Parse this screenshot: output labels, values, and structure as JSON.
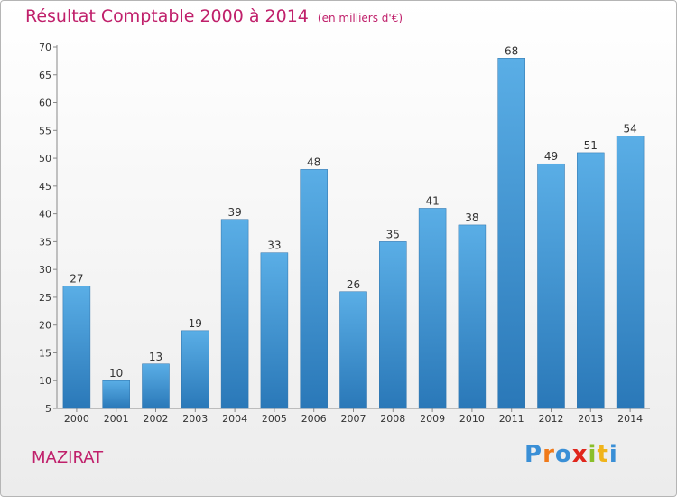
{
  "header": {
    "title": "Résultat Comptable 2000 à 2014",
    "subtitle": "(en milliers d'€)"
  },
  "footer": {
    "town": "MAZIRAT",
    "logo_text": "Proxiti"
  },
  "colors": {
    "bar_top": "#5aaee6",
    "bar_bottom": "#2a78b8",
    "title": "#c0206b",
    "grid": "#cccccc"
  },
  "chart_data": {
    "type": "bar",
    "title": "Résultat Comptable 2000 à 2014",
    "subtitle": "(en milliers d'€)",
    "xlabel": "",
    "ylabel": "",
    "categories": [
      "2000",
      "2001",
      "2002",
      "2003",
      "2004",
      "2005",
      "2006",
      "2007",
      "2008",
      "2009",
      "2010",
      "2011",
      "2012",
      "2013",
      "2014"
    ],
    "values": [
      27,
      10,
      13,
      19,
      39,
      33,
      48,
      26,
      35,
      41,
      38,
      68,
      49,
      51,
      54
    ],
    "ylim": [
      5,
      70
    ],
    "yticks": [
      5,
      10,
      15,
      20,
      25,
      30,
      35,
      40,
      45,
      50,
      55,
      60,
      65,
      70
    ],
    "grid": false,
    "legend": "none"
  }
}
